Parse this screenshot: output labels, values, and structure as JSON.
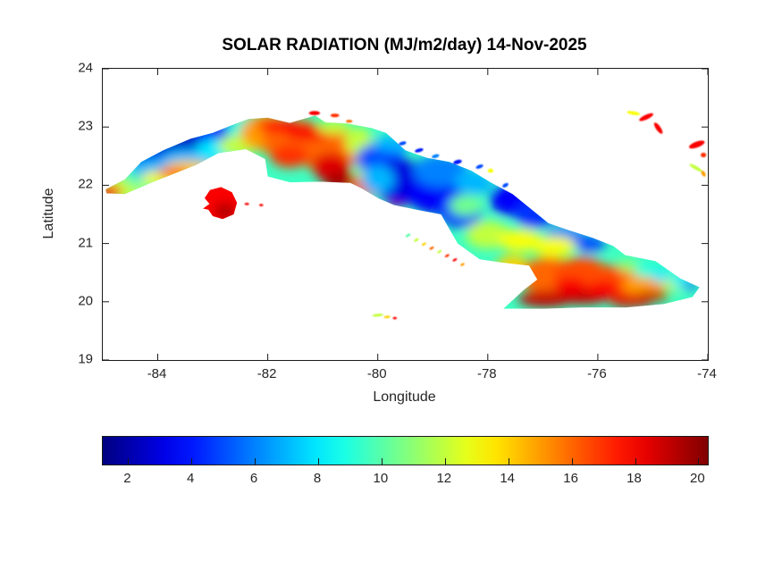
{
  "chart_data": {
    "type": "heatmap",
    "title": "SOLAR RADIATION (MJ/m2/day) 14-Nov-2025",
    "xlabel": "Longitude",
    "ylabel": "Latitude",
    "units": "MJ/m2/day",
    "date": "14-Nov-2025",
    "xlim": [
      -85,
      -74
    ],
    "ylim": [
      19,
      24
    ],
    "x_ticks": [
      "-84",
      "-82",
      "-80",
      "-78",
      "-76",
      "-74"
    ],
    "y_ticks": [
      "24",
      "23",
      "22",
      "21",
      "20",
      "19"
    ],
    "grid": false,
    "colormap": "jet",
    "colorbar": {
      "orientation": "horizontal",
      "range": [
        1.2,
        20.3
      ],
      "ticks": [
        "2",
        "4",
        "6",
        "8",
        "10",
        "12",
        "14",
        "16",
        "18",
        "20"
      ]
    },
    "regions_fields": [
      "lon",
      "lat",
      "rx_deg",
      "ry_deg",
      "value_MJ_m2_day"
    ],
    "regions": [
      [
        -84.6,
        21.95,
        0.38,
        0.22,
        12
      ],
      [
        -84.88,
        21.88,
        0.22,
        0.13,
        17
      ],
      [
        -84.3,
        22.12,
        0.3,
        0.16,
        10
      ],
      [
        -84.0,
        22.5,
        0.5,
        0.28,
        3
      ],
      [
        -83.4,
        22.72,
        0.55,
        0.26,
        2.5
      ],
      [
        -82.85,
        22.92,
        0.5,
        0.24,
        3.5
      ],
      [
        -84.05,
        22.28,
        0.45,
        0.18,
        7
      ],
      [
        -83.45,
        22.45,
        0.5,
        0.18,
        7
      ],
      [
        -82.9,
        22.62,
        0.4,
        0.18,
        8
      ],
      [
        -82.35,
        22.95,
        0.4,
        0.22,
        9
      ],
      [
        -83.85,
        22.12,
        0.45,
        0.14,
        13
      ],
      [
        -83.45,
        22.28,
        0.45,
        0.14,
        14
      ],
      [
        -83.7,
        22.2,
        0.3,
        0.08,
        17.5
      ],
      [
        -82.55,
        22.68,
        0.35,
        0.18,
        12
      ],
      [
        -82.0,
        22.9,
        0.5,
        0.32,
        15
      ],
      [
        -81.5,
        22.75,
        0.6,
        0.38,
        16
      ],
      [
        -80.9,
        22.6,
        0.55,
        0.38,
        16
      ],
      [
        -81.8,
        23.02,
        0.4,
        0.13,
        17.5
      ],
      [
        -81.25,
        22.9,
        0.45,
        0.14,
        18
      ],
      [
        -81.6,
        22.5,
        0.35,
        0.2,
        17
      ],
      [
        -80.85,
        22.32,
        0.35,
        0.24,
        18.5
      ],
      [
        -80.7,
        22.08,
        0.3,
        0.16,
        19.5
      ],
      [
        -80.2,
        22.0,
        0.3,
        0.2,
        16
      ],
      [
        -79.65,
        21.8,
        0.22,
        0.18,
        19
      ],
      [
        -80.8,
        23.0,
        0.3,
        0.12,
        12
      ],
      [
        -80.35,
        22.75,
        0.25,
        0.25,
        12
      ],
      [
        -80.2,
        22.35,
        0.22,
        0.28,
        12
      ],
      [
        -79.95,
        22.45,
        0.45,
        0.28,
        5
      ],
      [
        -79.55,
        22.05,
        0.55,
        0.38,
        3
      ],
      [
        -78.95,
        21.85,
        0.5,
        0.34,
        3.5
      ],
      [
        -78.5,
        21.55,
        0.4,
        0.28,
        4.5
      ],
      [
        -80.0,
        22.1,
        0.3,
        0.24,
        7
      ],
      [
        -78.85,
        22.25,
        0.5,
        0.28,
        6
      ],
      [
        -79.7,
        22.72,
        0.4,
        0.14,
        7
      ],
      [
        -78.4,
        21.65,
        0.3,
        0.18,
        10.5
      ],
      [
        -78.25,
        22.05,
        0.35,
        0.22,
        7
      ],
      [
        -77.55,
        21.75,
        0.42,
        0.28,
        3.5
      ],
      [
        -77.15,
        21.5,
        0.35,
        0.24,
        4.5
      ],
      [
        -76.6,
        21.15,
        0.35,
        0.18,
        6
      ],
      [
        -76.15,
        21.0,
        0.3,
        0.14,
        5
      ],
      [
        -78.0,
        21.15,
        0.4,
        0.24,
        12
      ],
      [
        -77.4,
        21.05,
        0.4,
        0.2,
        13
      ],
      [
        -76.8,
        20.95,
        0.4,
        0.18,
        13
      ],
      [
        -77.55,
        20.6,
        0.3,
        0.2,
        14
      ],
      [
        -76.9,
        20.45,
        0.5,
        0.32,
        16
      ],
      [
        -76.3,
        20.45,
        0.5,
        0.32,
        16.5
      ],
      [
        -75.7,
        20.35,
        0.5,
        0.28,
        16.5
      ],
      [
        -75.15,
        20.3,
        0.4,
        0.22,
        15
      ],
      [
        -76.95,
        20.05,
        0.5,
        0.14,
        19
      ],
      [
        -76.3,
        20.08,
        0.5,
        0.12,
        19
      ],
      [
        -75.4,
        20.02,
        0.4,
        0.11,
        18.5
      ],
      [
        -76.5,
        20.28,
        0.3,
        0.14,
        18
      ],
      [
        -75.9,
        20.22,
        0.3,
        0.14,
        18
      ],
      [
        -75.0,
        20.1,
        0.3,
        0.08,
        19
      ],
      [
        -75.15,
        20.55,
        0.22,
        0.14,
        9
      ],
      [
        -74.85,
        20.45,
        0.18,
        0.12,
        8
      ],
      [
        -75.45,
        20.62,
        0.2,
        0.1,
        11
      ],
      [
        -74.6,
        20.3,
        0.2,
        0.12,
        12
      ],
      [
        -74.5,
        20.35,
        0.16,
        0.11,
        8
      ],
      [
        -74.32,
        20.28,
        0.1,
        0.08,
        4
      ],
      [
        -82.85,
        21.68,
        0.33,
        0.28,
        18
      ],
      [
        -82.78,
        21.56,
        0.18,
        0.14,
        19.5
      ]
    ],
    "islets_fields": [
      "lon",
      "lat",
      "rx_deg",
      "ry_deg",
      "value_MJ_m2_day",
      "rot_deg"
    ],
    "islets": [
      [
        -81.15,
        23.24,
        0.1,
        0.035,
        18,
        0
      ],
      [
        -80.78,
        23.2,
        0.08,
        0.03,
        17,
        0
      ],
      [
        -80.52,
        23.1,
        0.06,
        0.025,
        16,
        0
      ],
      [
        -79.55,
        22.72,
        0.07,
        0.03,
        5,
        -15
      ],
      [
        -79.25,
        22.6,
        0.08,
        0.03,
        4,
        -15
      ],
      [
        -78.95,
        22.5,
        0.07,
        0.03,
        6,
        -15
      ],
      [
        -78.55,
        22.4,
        0.08,
        0.035,
        4,
        -15
      ],
      [
        -78.15,
        22.32,
        0.07,
        0.03,
        5,
        -20
      ],
      [
        -77.95,
        22.25,
        0.05,
        0.035,
        13,
        0
      ],
      [
        -77.68,
        22.0,
        0.06,
        0.03,
        5,
        -30
      ],
      [
        -82.38,
        21.68,
        0.04,
        0.02,
        18,
        0
      ],
      [
        -82.12,
        21.66,
        0.035,
        0.02,
        18,
        0
      ],
      [
        -79.45,
        21.14,
        0.05,
        0.022,
        10,
        -30
      ],
      [
        -79.3,
        21.06,
        0.05,
        0.022,
        12,
        -30
      ],
      [
        -79.16,
        20.99,
        0.045,
        0.02,
        14,
        -30
      ],
      [
        -79.02,
        20.92,
        0.045,
        0.02,
        16,
        -30
      ],
      [
        -78.88,
        20.86,
        0.045,
        0.02,
        12,
        -30
      ],
      [
        -78.74,
        20.79,
        0.045,
        0.02,
        17,
        -30
      ],
      [
        -78.6,
        20.72,
        0.045,
        0.02,
        18,
        -30
      ],
      [
        -78.46,
        20.64,
        0.04,
        0.02,
        15,
        -30
      ],
      [
        -80.0,
        19.77,
        0.1,
        0.025,
        12,
        -5
      ],
      [
        -79.83,
        19.74,
        0.06,
        0.022,
        14,
        -5
      ],
      [
        -79.69,
        19.72,
        0.035,
        0.02,
        18,
        0
      ],
      [
        -75.35,
        23.24,
        0.12,
        0.03,
        13,
        10
      ],
      [
        -75.12,
        23.17,
        0.14,
        0.04,
        18,
        -25
      ],
      [
        -74.9,
        22.98,
        0.12,
        0.04,
        18,
        55
      ],
      [
        -74.2,
        22.7,
        0.15,
        0.05,
        18,
        -20
      ],
      [
        -74.08,
        22.52,
        0.05,
        0.04,
        17,
        0
      ],
      [
        -74.22,
        22.3,
        0.13,
        0.03,
        12,
        30
      ],
      [
        -74.08,
        22.2,
        0.06,
        0.03,
        15,
        60
      ]
    ],
    "coastline": {
      "cuba": [
        [
          -84.95,
          21.93
        ],
        [
          -84.6,
          22.1
        ],
        [
          -84.3,
          22.4
        ],
        [
          -83.9,
          22.6
        ],
        [
          -83.4,
          22.8
        ],
        [
          -83.0,
          22.9
        ],
        [
          -82.6,
          23.05
        ],
        [
          -82.35,
          23.14
        ],
        [
          -82.0,
          23.16
        ],
        [
          -81.6,
          23.07
        ],
        [
          -81.14,
          23.2
        ],
        [
          -80.95,
          23.08
        ],
        [
          -80.55,
          23.06
        ],
        [
          -80.1,
          22.98
        ],
        [
          -79.85,
          22.9
        ],
        [
          -79.5,
          22.6
        ],
        [
          -79.1,
          22.47
        ],
        [
          -78.7,
          22.4
        ],
        [
          -78.3,
          22.25
        ],
        [
          -77.95,
          22.05
        ],
        [
          -77.55,
          21.85
        ],
        [
          -77.25,
          21.62
        ],
        [
          -76.9,
          21.35
        ],
        [
          -76.5,
          21.22
        ],
        [
          -76.1,
          21.1
        ],
        [
          -75.72,
          20.96
        ],
        [
          -75.5,
          20.8
        ],
        [
          -74.95,
          20.7
        ],
        [
          -74.5,
          20.4
        ],
        [
          -74.15,
          20.25
        ],
        [
          -74.28,
          20.08
        ],
        [
          -74.8,
          19.96
        ],
        [
          -75.5,
          19.9
        ],
        [
          -76.3,
          19.9
        ],
        [
          -77.0,
          19.88
        ],
        [
          -77.72,
          19.88
        ],
        [
          -77.35,
          20.2
        ],
        [
          -77.1,
          20.38
        ],
        [
          -77.25,
          20.62
        ],
        [
          -77.8,
          20.68
        ],
        [
          -78.15,
          20.73
        ],
        [
          -78.55,
          21.0
        ],
        [
          -78.85,
          21.5
        ],
        [
          -79.3,
          21.58
        ],
        [
          -79.7,
          21.66
        ],
        [
          -79.98,
          21.77
        ],
        [
          -80.3,
          21.95
        ],
        [
          -80.5,
          22.04
        ],
        [
          -81.0,
          22.06
        ],
        [
          -81.6,
          22.05
        ],
        [
          -82.0,
          22.15
        ],
        [
          -82.05,
          22.45
        ],
        [
          -82.4,
          22.62
        ],
        [
          -82.9,
          22.55
        ],
        [
          -83.3,
          22.35
        ],
        [
          -83.65,
          22.22
        ],
        [
          -84.1,
          22.05
        ],
        [
          -84.6,
          21.85
        ],
        [
          -84.93,
          21.86
        ]
      ],
      "isla_de_la_juventud": [
        [
          -83.15,
          21.78
        ],
        [
          -83.05,
          21.92
        ],
        [
          -82.85,
          21.97
        ],
        [
          -82.65,
          21.88
        ],
        [
          -82.56,
          21.7
        ],
        [
          -82.62,
          21.5
        ],
        [
          -82.82,
          21.42
        ],
        [
          -83.0,
          21.47
        ],
        [
          -83.08,
          21.58
        ],
        [
          -83.18,
          21.6
        ],
        [
          -83.06,
          21.68
        ]
      ]
    }
  }
}
